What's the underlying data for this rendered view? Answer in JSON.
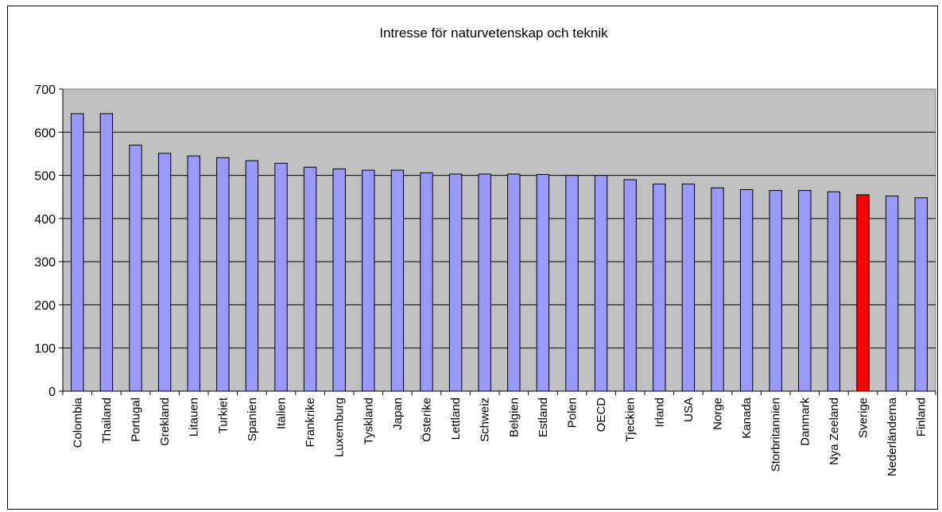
{
  "chart_data": {
    "type": "bar",
    "title": "Intresse för naturvetenskap och teknik",
    "xlabel": "",
    "ylabel": "",
    "ylim": [
      0,
      700
    ],
    "yticks": [
      0,
      100,
      200,
      300,
      400,
      500,
      600,
      700
    ],
    "grid": true,
    "legend": "none",
    "categories": [
      "Colombia",
      "Thailand",
      "Portugal",
      "Grekland",
      "Litauen",
      "Turkiet",
      "Spanien",
      "Italien",
      "Frankrike",
      "Luxemburg",
      "Tyskland",
      "Japan",
      "Österike",
      "Lettland",
      "Schweiz",
      "Belgien",
      "Estland",
      "Polen",
      "OECD",
      "Tjeckien",
      "Irland",
      "USA",
      "Norge",
      "Kanada",
      "Storbritannien",
      "Danmark",
      "Nya Zeeland",
      "Sverige",
      "Nederländerna",
      "Finland"
    ],
    "values": [
      643,
      643,
      570,
      551,
      545,
      541,
      534,
      528,
      519,
      515,
      512,
      512,
      506,
      503,
      503,
      503,
      502,
      500,
      500,
      490,
      480,
      480,
      471,
      467,
      465,
      465,
      462,
      455,
      452,
      448
    ],
    "highlight_category": "Sverige",
    "colors": {
      "bar": "#9999ff",
      "highlight": "#ff0000",
      "plot_background": "#c0c0c0",
      "gridline": "#000000"
    }
  }
}
